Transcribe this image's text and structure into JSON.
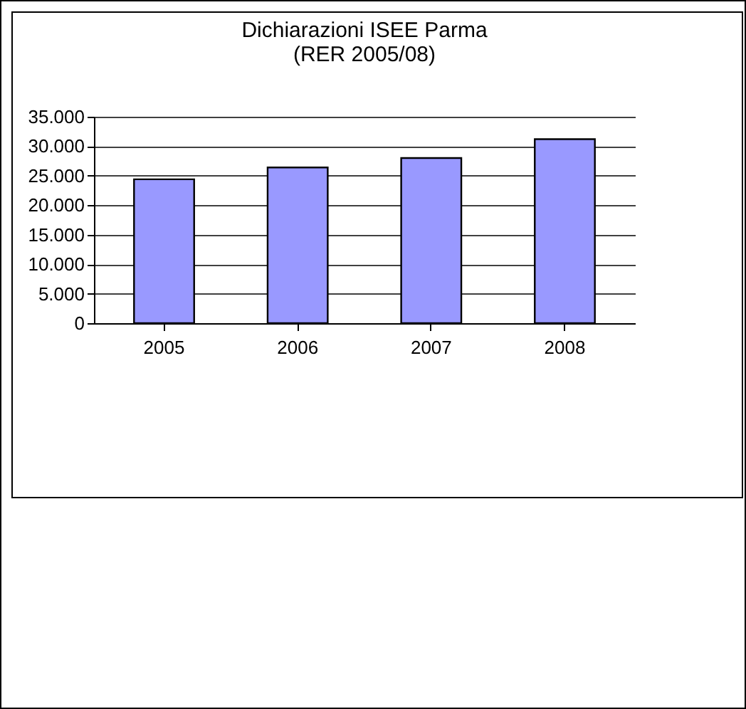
{
  "chart_data": {
    "type": "bar",
    "title": [
      "Dichiarazioni ISEE Parma",
      "(RER 2005/08)"
    ],
    "categories": [
      "2005",
      "2006",
      "2007",
      "2008"
    ],
    "values": [
      24400,
      26400,
      28000,
      31200
    ],
    "color": "#9999ff",
    "ylim": [
      0,
      35000
    ],
    "yticks": [
      {
        "value": 0,
        "label": "0"
      },
      {
        "value": 5000,
        "label": "5.000"
      },
      {
        "value": 10000,
        "label": "10.000"
      },
      {
        "value": 15000,
        "label": "15.000"
      },
      {
        "value": 20000,
        "label": "20.000"
      },
      {
        "value": 25000,
        "label": "25.000"
      },
      {
        "value": 30000,
        "label": "30.000"
      },
      {
        "value": 35000,
        "label": "35.000"
      }
    ],
    "grid": "y"
  }
}
